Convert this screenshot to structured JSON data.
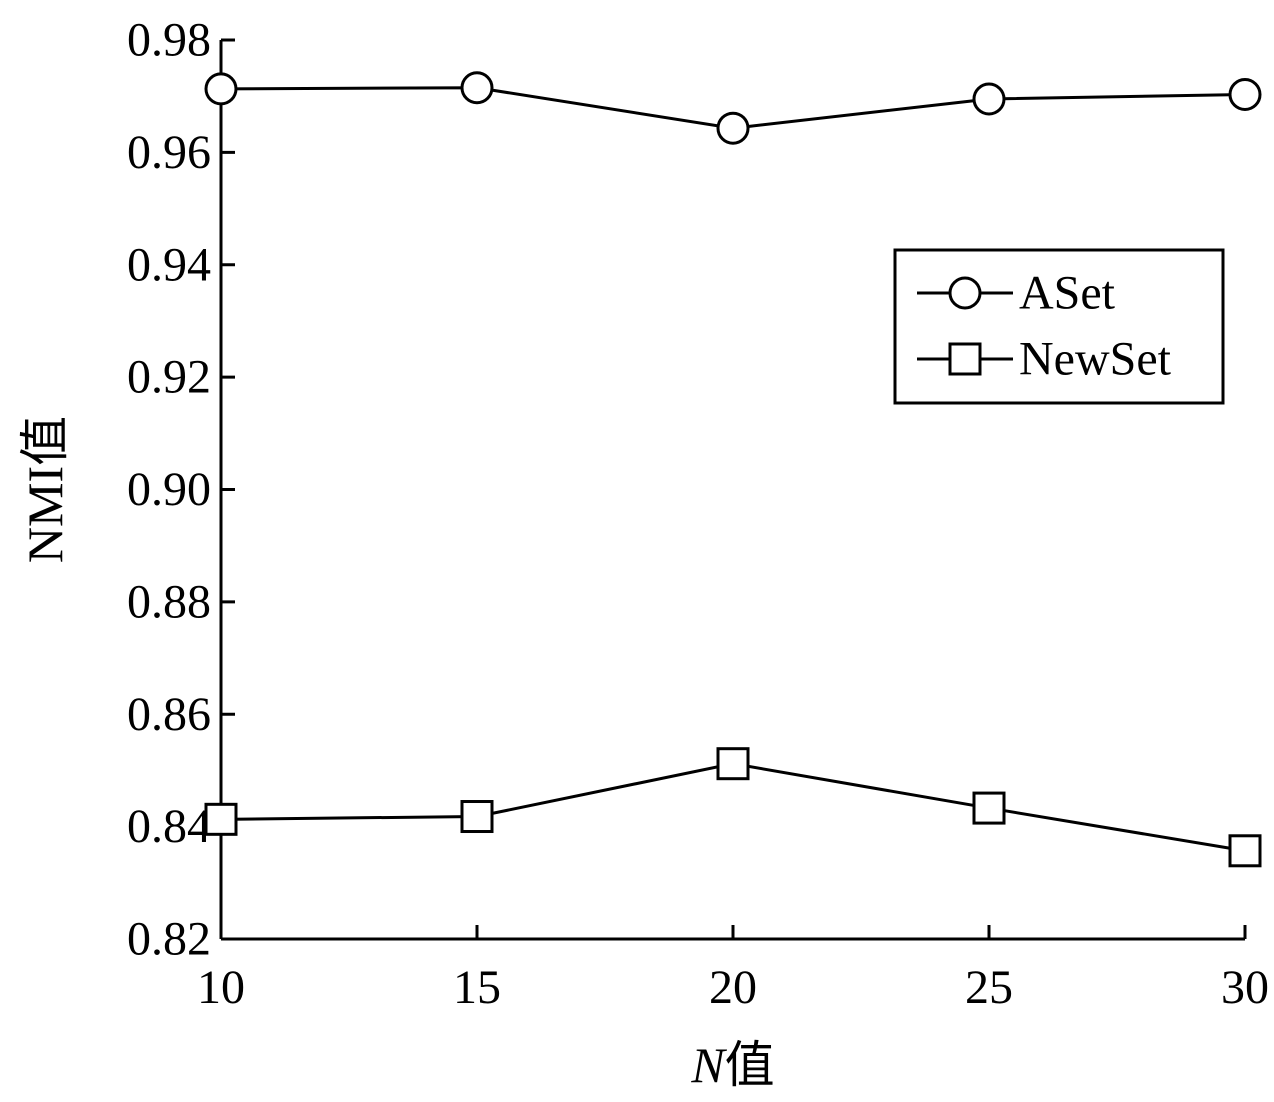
{
  "chart_data": {
    "type": "line",
    "xlabel_var": "N",
    "xlabel_suffix": "值",
    "ylabel": "NMI值",
    "x": [
      10,
      15,
      20,
      25,
      30
    ],
    "xlim": [
      10,
      30
    ],
    "ylim": [
      0.82,
      0.98
    ],
    "xticks": [
      "10",
      "15",
      "20",
      "25",
      "30"
    ],
    "yticks": [
      "0.82",
      "0.84",
      "0.86",
      "0.88",
      "0.90",
      "0.92",
      "0.94",
      "0.96",
      "0.98"
    ],
    "grid": false,
    "legend_position": "upper-right",
    "series": [
      {
        "name": "ASet",
        "marker": "circle",
        "values": [
          0.9713,
          0.9715,
          0.9643,
          0.9695,
          0.9703
        ]
      },
      {
        "name": "NewSet",
        "marker": "square",
        "values": [
          0.8413,
          0.8418,
          0.8512,
          0.8433,
          0.8357
        ]
      }
    ],
    "color": "#000000"
  }
}
